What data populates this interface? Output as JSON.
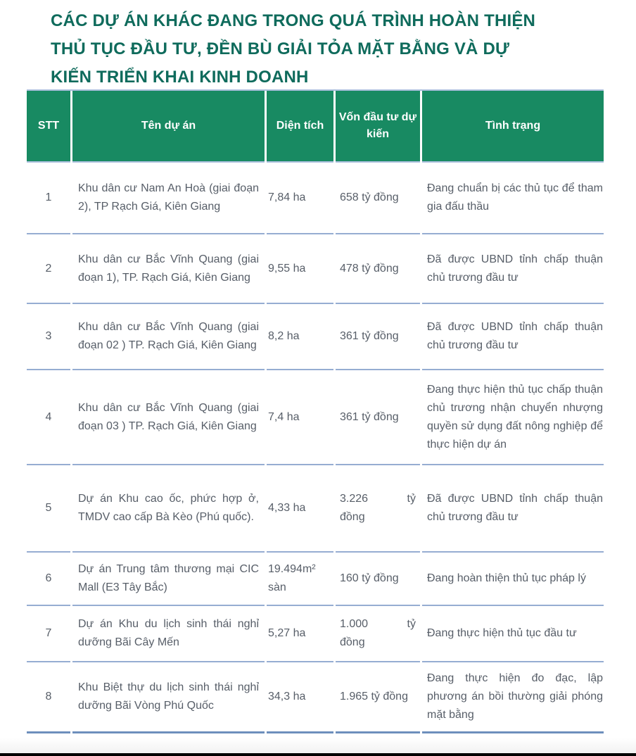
{
  "title": "CÁC DỰ ÁN KHÁC ĐANG TRONG QUÁ TRÌNH HOÀN THIỆN THỦ TỤC ĐẦU TƯ, ĐỀN BÙ GIẢI TỎA MẶT BẰNG VÀ DỰ KIẾN TRIỂN KHAI KINH DOANH",
  "colors": {
    "title_teal": "#0f6b5c",
    "header_green": "#188a62",
    "header_text": "#ffffff",
    "body_text": "#575e68",
    "row_border_blue": "#96add2",
    "bottom_border_blue": "#6d8fbc"
  },
  "table": {
    "columns": [
      "STT",
      "Tên dự án",
      "Diện tích",
      "Vốn đầu tư dự kiến",
      "Tình trạng"
    ],
    "rows": [
      {
        "stt": "1",
        "name": "Khu dân cư Nam An Hoà (giai đoạn 2), TP Rạch Giá, Kiên Giang",
        "area": "7,84 ha",
        "capital": "658 tỷ đồng",
        "status": "Đang chuẩn bị các thủ tục để tham gia đấu thầu"
      },
      {
        "stt": "2",
        "name": "Khu dân cư Bắc Vĩnh Quang (giai đoạn 1), TP. Rạch Giá, Kiên Giang",
        "area": "9,55 ha",
        "capital": "478 tỷ đồng",
        "status": "Đã được UBND tỉnh chấp thuận chủ trương đầu tư"
      },
      {
        "stt": "3",
        "name": "Khu dân cư Bắc Vĩnh Quang (giai đoạn 02 ) TP. Rạch Giá, Kiên Giang",
        "area": "8,2 ha",
        "capital": "361 tỷ đồng",
        "status": "Đã được UBND tỉnh chấp thuận chủ trương đầu tư"
      },
      {
        "stt": "4",
        "name": "Khu dân cư Bắc Vĩnh Quang (giai đoạn 03 ) TP. Rạch Giá, Kiên Giang",
        "area": "7,4 ha",
        "capital": "361 tỷ đồng",
        "status": "Đang thực hiện thủ tục chấp thuận chủ trương nhận chuyển nhượng quyền sử dụng đất nông nghiệp để thực hiện dự án"
      },
      {
        "stt": "5",
        "name": "Dự án Khu cao ốc, phức hợp ở, TMDV cao cấp Bà Kèo (Phú quốc).",
        "area": "4,33 ha",
        "capital": "3.226 tỷ\nđồng",
        "status": "Đã được UBND tỉnh chấp thuận chủ trương đầu tư"
      },
      {
        "stt": "6",
        "name": "Dự án Trung tâm thương mại CIC Mall (E3 Tây Bắc)",
        "area": "19.494m² sàn",
        "capital": "160 tỷ đồng",
        "status": "Đang hoàn thiện thủ tục pháp lý"
      },
      {
        "stt": "7",
        "name": "Dự án Khu du lịch sinh thái nghỉ dưỡng Bãi Cây Mến",
        "area": "5,27 ha",
        "capital": "1.000 tỷ\nđồng",
        "status": "Đang thực hiện thủ tục đầu tư"
      },
      {
        "stt": "8",
        "name": "Khu Biệt thự du lịch sinh thái nghỉ dưỡng Bãi Vòng Phú Quốc",
        "area": "34,3 ha",
        "capital": "1.965 tỷ đồng",
        "status": "Đang thực hiện đo đạc, lập phương án bồi thường giải phóng mặt bằng"
      }
    ]
  }
}
